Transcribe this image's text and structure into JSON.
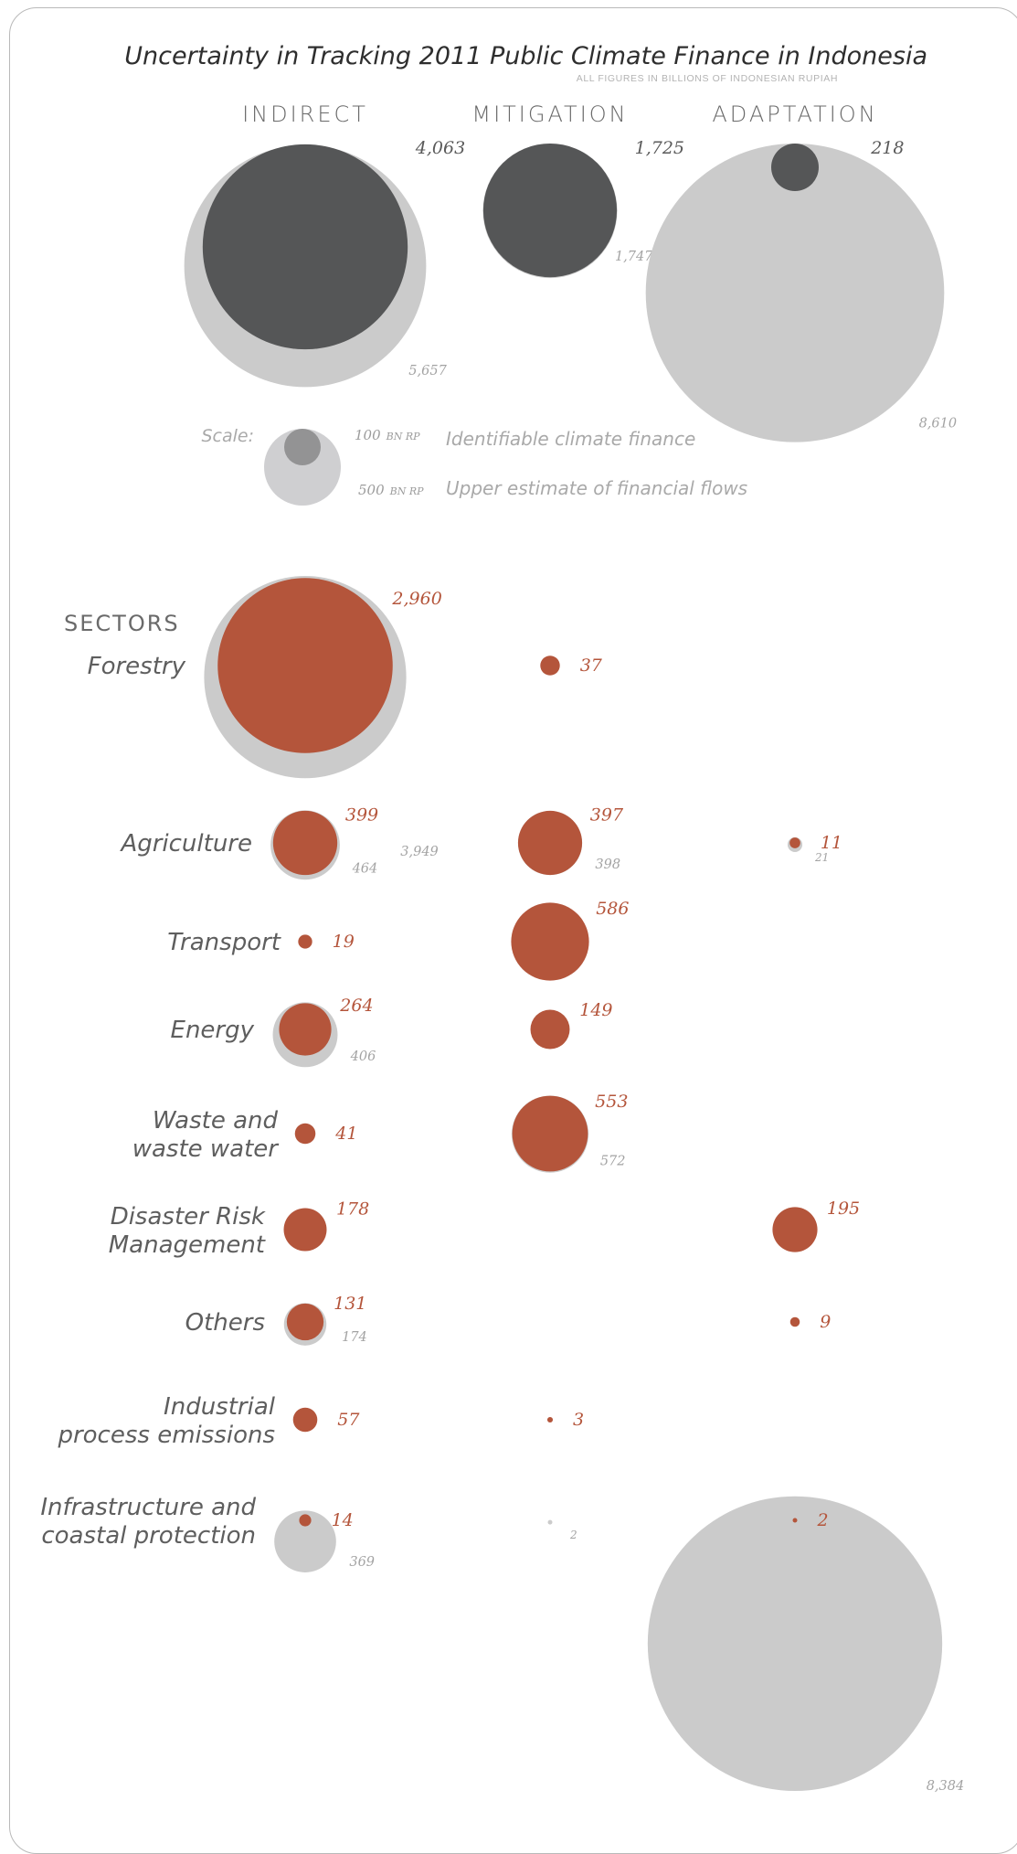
{
  "chart_data": {
    "type": "bubble",
    "title": "Uncertainty in Tracking 2011 Public Climate Finance in Indonesia",
    "subtitle": "ALL FIGURES IN BILLIONS OF INDONESIAN RUPIAH",
    "columns": [
      "INDIRECT",
      "MITIGATION",
      "ADAPTATION"
    ],
    "sections_heading": "SECTORS",
    "colors": {
      "identifiable_total": "#555657",
      "identifiable_sector": "#b4553b",
      "upper": "#cbcbcb",
      "scale_small": "#939394",
      "scale_large": "#cfcfd1"
    },
    "totals": [
      {
        "column": "INDIRECT",
        "identifiable": 4063,
        "identifiable_label": "4,063",
        "upper": 5657,
        "upper_label": "5,657"
      },
      {
        "column": "MITIGATION",
        "identifiable": 1725,
        "identifiable_label": "1,725",
        "upper": 1747,
        "upper_label": "1,747"
      },
      {
        "column": "ADAPTATION",
        "identifiable": 218,
        "identifiable_label": "218",
        "upper": 8610,
        "upper_label": "8,610"
      }
    ],
    "legend": {
      "prefix": "Scale:",
      "items": [
        {
          "value": 100,
          "value_label": "100",
          "unit": "BN RP",
          "description": "Identifiable climate finance"
        },
        {
          "value": 500,
          "value_label": "500",
          "unit": "BN RP",
          "description": "Upper estimate of financial flows"
        }
      ]
    },
    "sectors": [
      {
        "name": [
          "Forestry"
        ],
        "cells": [
          {
            "column": "INDIRECT",
            "identifiable": 2960,
            "identifiable_label": "2,960",
            "upper": 3949,
            "upper_label": "3,949"
          },
          {
            "column": "MITIGATION",
            "identifiable": 37,
            "identifiable_label": "37"
          }
        ]
      },
      {
        "name": [
          "Agriculture"
        ],
        "cells": [
          {
            "column": "INDIRECT",
            "identifiable": 399,
            "identifiable_label": "399",
            "upper": 464,
            "upper_label": "464"
          },
          {
            "column": "MITIGATION",
            "identifiable": 397,
            "identifiable_label": "397",
            "upper": 398,
            "upper_label": "398"
          },
          {
            "column": "ADAPTATION",
            "identifiable": 11,
            "identifiable_label": "11",
            "upper": 21,
            "upper_label": "21"
          }
        ]
      },
      {
        "name": [
          "Transport"
        ],
        "cells": [
          {
            "column": "INDIRECT",
            "identifiable": 19,
            "identifiable_label": "19"
          },
          {
            "column": "MITIGATION",
            "identifiable": 586,
            "identifiable_label": "586"
          }
        ]
      },
      {
        "name": [
          "Energy"
        ],
        "cells": [
          {
            "column": "INDIRECT",
            "identifiable": 264,
            "identifiable_label": "264",
            "upper": 406,
            "upper_label": "406"
          },
          {
            "column": "MITIGATION",
            "identifiable": 149,
            "identifiable_label": "149"
          }
        ]
      },
      {
        "name": [
          "Waste and",
          "waste water"
        ],
        "cells": [
          {
            "column": "INDIRECT",
            "identifiable": 41,
            "identifiable_label": "41"
          },
          {
            "column": "MITIGATION",
            "identifiable": 553,
            "identifiable_label": "553",
            "upper": 572,
            "upper_label": "572"
          }
        ]
      },
      {
        "name": [
          "Disaster Risk",
          "Management"
        ],
        "cells": [
          {
            "column": "INDIRECT",
            "identifiable": 178,
            "identifiable_label": "178"
          },
          {
            "column": "ADAPTATION",
            "identifiable": 195,
            "identifiable_label": "195"
          }
        ]
      },
      {
        "name": [
          "Others"
        ],
        "cells": [
          {
            "column": "INDIRECT",
            "identifiable": 131,
            "identifiable_label": "131",
            "upper": 174,
            "upper_label": "174"
          },
          {
            "column": "ADAPTATION",
            "identifiable": 9,
            "identifiable_label": "9"
          }
        ]
      },
      {
        "name": [
          "Industrial",
          "process emissions"
        ],
        "cells": [
          {
            "column": "INDIRECT",
            "identifiable": 57,
            "identifiable_label": "57"
          },
          {
            "column": "MITIGATION",
            "identifiable": 3,
            "identifiable_label": "3"
          }
        ]
      },
      {
        "name": [
          "Infrastructure and",
          "coastal protection"
        ],
        "cells": [
          {
            "column": "INDIRECT",
            "identifiable": 14,
            "identifiable_label": "14",
            "upper": 369,
            "upper_label": "369"
          },
          {
            "column": "MITIGATION",
            "identifiable": 0,
            "upper": 2,
            "upper_label": "2"
          },
          {
            "column": "ADAPTATION",
            "identifiable": 2,
            "identifiable_label": "2",
            "upper": 8384,
            "upper_label": "8,384"
          }
        ]
      }
    ]
  }
}
